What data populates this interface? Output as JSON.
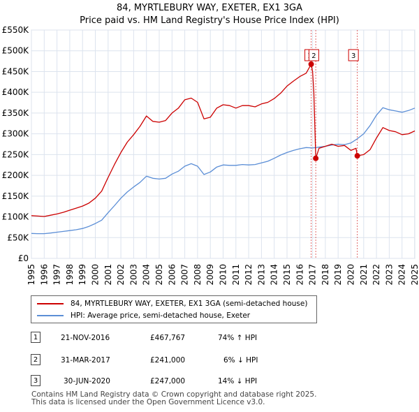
{
  "chart_data": {
    "type": "line",
    "title": "84, MYRTLEBURY WAY, EXETER, EX1 3GA",
    "subtitle": "Price paid vs. HM Land Registry's House Price Index (HPI)",
    "xlim": [
      1995,
      2025
    ],
    "ylim": [
      0,
      550000
    ],
    "x_ticks": [
      "1995",
      "1996",
      "1997",
      "1998",
      "1999",
      "2000",
      "2001",
      "2002",
      "2003",
      "2004",
      "2005",
      "2006",
      "2007",
      "2008",
      "2009",
      "2010",
      "2011",
      "2012",
      "2013",
      "2014",
      "2015",
      "2016",
      "2017",
      "2018",
      "2019",
      "2020",
      "2021",
      "2022",
      "2023",
      "2024",
      "2025"
    ],
    "y_ticks": [
      {
        "v": 0,
        "label": "£0"
      },
      {
        "v": 50000,
        "label": "£50K"
      },
      {
        "v": 100000,
        "label": "£100K"
      },
      {
        "v": 150000,
        "label": "£150K"
      },
      {
        "v": 200000,
        "label": "£200K"
      },
      {
        "v": 250000,
        "label": "£250K"
      },
      {
        "v": 300000,
        "label": "£300K"
      },
      {
        "v": 350000,
        "label": "£350K"
      },
      {
        "v": 400000,
        "label": "£400K"
      },
      {
        "v": 450000,
        "label": "£450K"
      },
      {
        "v": 500000,
        "label": "£500K"
      },
      {
        "v": 550000,
        "label": "£550K"
      }
    ],
    "series": [
      {
        "name": "84, MYRTLEBURY WAY, EXETER, EX1 3GA (semi-detached house)",
        "color": "#cc0000",
        "x": [
          1995,
          1995.5,
          1996,
          1996.5,
          1997,
          1997.5,
          1998,
          1998.5,
          1999,
          1999.5,
          2000,
          2000.5,
          2001,
          2001.5,
          2002,
          2002.5,
          2003,
          2003.5,
          2004,
          2004.5,
          2005,
          2005.5,
          2006,
          2006.5,
          2007,
          2007.5,
          2008,
          2008.5,
          2009,
          2009.5,
          2010,
          2010.5,
          2011,
          2011.5,
          2012,
          2012.5,
          2013,
          2013.5,
          2014,
          2014.5,
          2015,
          2015.5,
          2016,
          2016.5,
          2016.89,
          2017.0,
          2017.1,
          2017.25,
          2017.5,
          2018,
          2018.5,
          2019,
          2019.5,
          2020,
          2020.4,
          2020.5,
          2021,
          2021.5,
          2022,
          2022.5,
          2023,
          2023.5,
          2024,
          2024.5,
          2025
        ],
        "y": [
          103000,
          102000,
          101000,
          104000,
          107000,
          111000,
          116000,
          121000,
          126000,
          133000,
          145000,
          162000,
          195000,
          226000,
          255000,
          280000,
          298000,
          318000,
          343000,
          330000,
          328000,
          332000,
          350000,
          362000,
          382000,
          386000,
          376000,
          336000,
          340000,
          362000,
          370000,
          368000,
          362000,
          368000,
          368000,
          365000,
          372000,
          376000,
          385000,
          398000,
          415000,
          427000,
          438000,
          446000,
          467767,
          450000,
          400000,
          241000,
          265000,
          270000,
          275000,
          270000,
          272000,
          260000,
          265000,
          247000,
          250000,
          262000,
          290000,
          315000,
          308000,
          305000,
          298000,
          300000,
          307000
        ]
      },
      {
        "name": "HPI: Average price, semi-detached house, Exeter",
        "color": "#5b8ed6",
        "x": [
          1995,
          1995.5,
          1996,
          1996.5,
          1997,
          1997.5,
          1998,
          1998.5,
          1999,
          1999.5,
          2000,
          2000.5,
          2001,
          2001.5,
          2002,
          2002.5,
          2003,
          2003.5,
          2004,
          2004.5,
          2005,
          2005.5,
          2006,
          2006.5,
          2007,
          2007.5,
          2008,
          2008.5,
          2009,
          2009.5,
          2010,
          2010.5,
          2011,
          2011.5,
          2012,
          2012.5,
          2013,
          2013.5,
          2014,
          2014.5,
          2015,
          2015.5,
          2016,
          2016.5,
          2017,
          2017.5,
          2018,
          2018.5,
          2019,
          2019.5,
          2020,
          2020.5,
          2021,
          2021.5,
          2022,
          2022.5,
          2023,
          2023.5,
          2024,
          2024.5,
          2025
        ],
        "y": [
          60000,
          59500,
          59500,
          61000,
          63000,
          65000,
          67000,
          69000,
          72000,
          77000,
          84000,
          92000,
          110000,
          127000,
          145000,
          160000,
          172000,
          183000,
          198000,
          193000,
          191000,
          193000,
          203000,
          210000,
          222000,
          228000,
          222000,
          202000,
          208000,
          220000,
          225000,
          224000,
          224000,
          226000,
          225000,
          226000,
          230000,
          234000,
          241000,
          249000,
          255000,
          260000,
          264000,
          267000,
          266000,
          268000,
          270000,
          273000,
          275000,
          274000,
          278000,
          288000,
          300000,
          320000,
          345000,
          363000,
          358000,
          355000,
          352000,
          356000,
          362000
        ]
      }
    ],
    "sales": [
      {
        "id": "1",
        "x": 2016.89,
        "y": 467767,
        "date": "21-NOV-2016",
        "price": "£467,767",
        "hpi": "74% ↑ HPI"
      },
      {
        "id": "2",
        "x": 2017.25,
        "y": 241000,
        "date": "31-MAR-2017",
        "price": "£241,000",
        "hpi": "6% ↓ HPI"
      },
      {
        "id": "3",
        "x": 2020.5,
        "y": 247000,
        "date": "30-JUN-2020",
        "price": "£247,000",
        "hpi": "14% ↓ HPI"
      }
    ],
    "shaded_span": [
      2024.95,
      2025
    ],
    "grid": true,
    "legend_position": "below"
  },
  "colors": {
    "grid": "#dce3ee",
    "axis_bg": "#ffffff",
    "sale_line": "#cc0000",
    "hpi_line": "#5b8ed6"
  },
  "footer": {
    "line1": "Contains HM Land Registry data © Crown copyright and database right 2025.",
    "line2": "This data is licensed under the Open Government Licence v3.0."
  }
}
